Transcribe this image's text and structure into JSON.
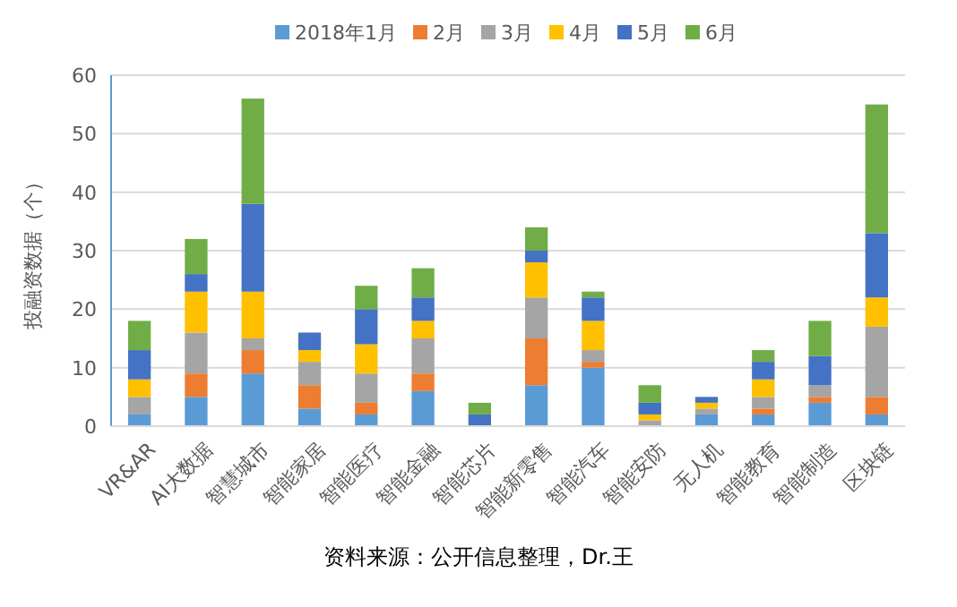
{
  "chart_data": {
    "type": "bar",
    "stacked": true,
    "ylabel": "投融资数据（个）",
    "categories": [
      "VR&AR",
      "AI大数据",
      "智慧城市",
      "智能家居",
      "智能医疗",
      "智能金融",
      "智能芯片",
      "智能新零售",
      "智能汽车",
      "智能安防",
      "无人机",
      "智能教育",
      "智能制造",
      "区块链"
    ],
    "series": [
      {
        "name": "2018年1月",
        "color": "#5b9bd5",
        "values": [
          2,
          5,
          9,
          3,
          2,
          6,
          0,
          7,
          10,
          0,
          2,
          2,
          4,
          2
        ]
      },
      {
        "name": "2月",
        "color": "#ed7d31",
        "values": [
          0,
          4,
          4,
          4,
          2,
          3,
          0,
          8,
          1,
          0,
          0,
          1,
          1,
          3
        ]
      },
      {
        "name": "3月",
        "color": "#a5a5a5",
        "values": [
          3,
          7,
          2,
          4,
          5,
          6,
          0,
          7,
          2,
          1,
          1,
          2,
          2,
          12
        ]
      },
      {
        "name": "4月",
        "color": "#ffc000",
        "values": [
          3,
          7,
          8,
          2,
          5,
          3,
          0,
          6,
          5,
          1,
          1,
          3,
          0,
          5
        ]
      },
      {
        "name": "5月",
        "color": "#4472c4",
        "values": [
          5,
          3,
          15,
          3,
          6,
          4,
          2,
          2,
          4,
          2,
          1,
          3,
          5,
          11
        ]
      },
      {
        "name": "6月",
        "color": "#70ad47",
        "values": [
          5,
          6,
          18,
          0,
          4,
          5,
          2,
          4,
          1,
          3,
          0,
          2,
          6,
          22
        ]
      }
    ],
    "ylim": [
      0,
      60
    ],
    "yticks": [
      0,
      10,
      20,
      30,
      40,
      50,
      60
    ],
    "grid": "y",
    "legend": "top",
    "annotations": [
      "资料来源：公开信息整理，Dr.王"
    ]
  }
}
